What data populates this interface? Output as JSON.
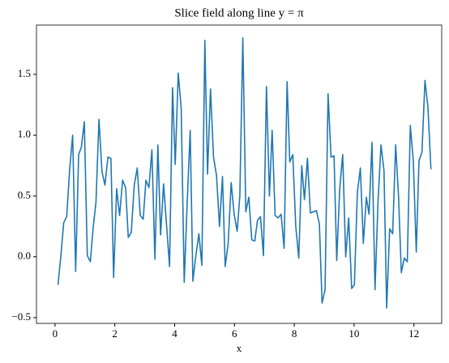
{
  "chart_data": {
    "type": "line",
    "title": "Slice field along line y = π",
    "xlabel": "x",
    "x": [
      0.1,
      0.2,
      0.29,
      0.39,
      0.49,
      0.59,
      0.69,
      0.79,
      0.88,
      0.98,
      1.08,
      1.18,
      1.28,
      1.37,
      1.47,
      1.57,
      1.67,
      1.77,
      1.87,
      1.96,
      2.06,
      2.16,
      2.26,
      2.36,
      2.45,
      2.55,
      2.65,
      2.75,
      2.85,
      2.95,
      3.04,
      3.14,
      3.24,
      3.34,
      3.44,
      3.53,
      3.63,
      3.73,
      3.83,
      3.93,
      4.02,
      4.12,
      4.22,
      4.32,
      4.42,
      4.52,
      4.61,
      4.71,
      4.81,
      4.91,
      5.01,
      5.1,
      5.2,
      5.3,
      5.4,
      5.5,
      5.6,
      5.69,
      5.79,
      5.89,
      5.99,
      6.09,
      6.18,
      6.28,
      6.38,
      6.48,
      6.58,
      6.68,
      6.77,
      6.87,
      6.97,
      7.07,
      7.17,
      7.26,
      7.36,
      7.46,
      7.56,
      7.66,
      7.76,
      7.85,
      7.95,
      8.05,
      8.15,
      8.25,
      8.34,
      8.44,
      8.54,
      8.64,
      8.74,
      8.84,
      8.93,
      9.03,
      9.13,
      9.23,
      9.33,
      9.42,
      9.52,
      9.62,
      9.72,
      9.82,
      9.92,
      10.01,
      10.11,
      10.21,
      10.31,
      10.41,
      10.5,
      10.6,
      10.7,
      10.8,
      10.9,
      11.0,
      11.09,
      11.19,
      11.29,
      11.39,
      11.49,
      11.58,
      11.68,
      11.78,
      11.88,
      11.98,
      12.08,
      12.17,
      12.27,
      12.37,
      12.47,
      12.57
    ],
    "series": [
      {
        "color": "#1f77b4",
        "values": [
          -0.23,
          0.02,
          0.28,
          0.33,
          0.72,
          1.0,
          -0.12,
          0.84,
          0.9,
          1.11,
          0.01,
          -0.04,
          0.25,
          0.45,
          1.13,
          0.7,
          0.59,
          0.82,
          0.81,
          -0.17,
          0.56,
          0.34,
          0.63,
          0.57,
          0.16,
          0.2,
          0.59,
          0.73,
          0.34,
          0.31,
          0.63,
          0.57,
          0.88,
          -0.02,
          0.92,
          0.18,
          0.6,
          0.26,
          -0.08,
          1.39,
          0.76,
          1.51,
          1.22,
          -0.21,
          0.45,
          1.04,
          -0.2,
          0.01,
          0.19,
          -0.07,
          1.78,
          0.68,
          1.38,
          0.82,
          0.67,
          0.25,
          0.66,
          -0.08,
          0.11,
          0.61,
          0.35,
          0.21,
          0.5,
          1.8,
          0.37,
          0.49,
          0.14,
          0.13,
          0.3,
          0.33,
          0.01,
          1.4,
          0.5,
          1.04,
          0.34,
          0.32,
          0.35,
          0.07,
          1.44,
          0.78,
          0.84,
          0.25,
          -0.01,
          0.75,
          0.47,
          0.81,
          0.36,
          0.37,
          0.38,
          0.27,
          -0.38,
          -0.27,
          1.34,
          0.82,
          0.83,
          -0.03,
          0.56,
          0.84,
          0.0,
          0.32,
          -0.26,
          -0.23,
          0.53,
          0.73,
          0.11,
          0.49,
          0.35,
          0.94,
          -0.27,
          0.45,
          0.92,
          0.71,
          -0.42,
          0.23,
          0.19,
          0.92,
          0.48,
          -0.13,
          -0.01,
          -0.04,
          1.08,
          0.79,
          0.04,
          0.79,
          0.86,
          1.45,
          1.23,
          0.72
        ]
      }
    ],
    "xlim": [
      -0.62,
      12.93
    ],
    "ylim": [
      -0.547,
      1.905
    ],
    "xticks": [
      0,
      2,
      4,
      6,
      8,
      10,
      12
    ],
    "yticks": [
      {
        "value": -0.5,
        "label": "−0.5"
      },
      {
        "value": 0,
        "label": "0.0"
      },
      0.5,
      {
        "value": 1,
        "label": "1.0"
      },
      1.5
    ]
  }
}
